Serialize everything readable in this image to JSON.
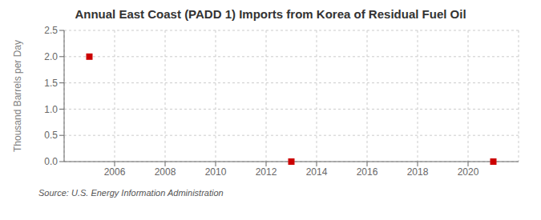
{
  "chart_data": {
    "type": "scatter",
    "title": "Annual East Coast (PADD 1) Imports from Korea of Residual Fuel Oil",
    "y_label": "Thousand Barrels per Day",
    "annotations": [
      "Source: U.S. Energy Information Administration"
    ],
    "x": [
      2005,
      2013,
      2021
    ],
    "values": [
      2.0,
      0.0,
      0.0
    ],
    "color": "#cc0000",
    "marker": "square",
    "xlim": [
      2004,
      2022
    ],
    "xticks": [
      2006,
      2008,
      2010,
      2012,
      2014,
      2016,
      2018,
      2020
    ],
    "ylim": [
      0.0,
      2.5
    ],
    "yticks": [
      {
        "value": 0.0,
        "label": "0.0"
      },
      0.5,
      {
        "value": 1.0,
        "label": "1.0"
      },
      1.5,
      {
        "value": 2.0,
        "label": "2.0"
      },
      2.5
    ],
    "grid": true
  }
}
